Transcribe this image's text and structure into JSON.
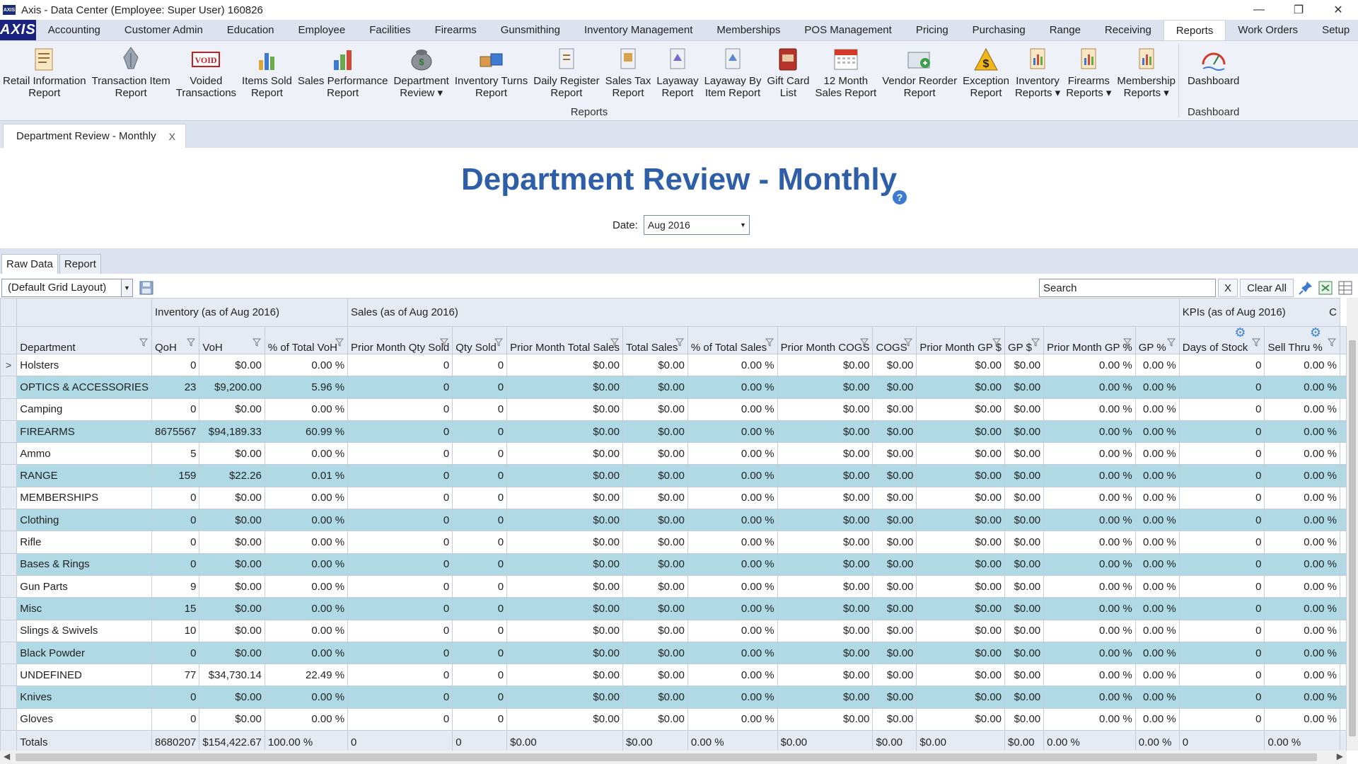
{
  "window": {
    "title": "Axis - Data Center  (Employee: Super User) 160826",
    "app_icon": "AXIS",
    "controls": [
      "—",
      "❐",
      "✕"
    ]
  },
  "menubar": {
    "logo": "AXIS",
    "items": [
      "Accounting",
      "Customer Admin",
      "Education",
      "Employee",
      "Facilities",
      "Firearms",
      "Gunsmithing",
      "Inventory Management",
      "Memberships",
      "POS Management",
      "Pricing",
      "Purchasing",
      "Range",
      "Receiving",
      "Reports",
      "Work Orders",
      "Setup"
    ],
    "active": "Reports"
  },
  "ribbon": {
    "reports_group_label": "Reports",
    "dashboard_group_label": "Dashboard",
    "buttons": [
      {
        "label": "Retail Information\nReport",
        "icon": "report-document-icon"
      },
      {
        "label": "Transaction Item\nReport",
        "icon": "pen-nib-icon"
      },
      {
        "label": "Voided\nTransactions",
        "icon": "void-stamp-icon",
        "stamp_text": "VOID"
      },
      {
        "label": "Items Sold\nReport",
        "icon": "bar-chart-icon"
      },
      {
        "label": "Sales Performance\nReport",
        "icon": "chart-bars-icon"
      },
      {
        "label": "Department\nReview ▾",
        "icon": "money-bag-icon"
      },
      {
        "label": "Inventory Turns\nReport",
        "icon": "boxes-icon"
      },
      {
        "label": "Daily Register\nReport",
        "icon": "register-report-icon"
      },
      {
        "label": "Sales Tax\nReport",
        "icon": "tax-report-icon"
      },
      {
        "label": "Layaway\nReport",
        "icon": "layaway-report-icon"
      },
      {
        "label": "Layaway By\nItem Report",
        "icon": "layaway-item-icon"
      },
      {
        "label": "Gift Card\nList",
        "icon": "gift-card-icon"
      },
      {
        "label": "12 Month\nSales Report",
        "icon": "calendar-icon"
      },
      {
        "label": "Vendor Reorder\nReport",
        "icon": "vendor-reorder-icon"
      },
      {
        "label": "Exception\nReport",
        "icon": "dollar-warning-icon"
      },
      {
        "label": "Inventory\nReports ▾",
        "icon": "inventory-reports-icon"
      },
      {
        "label": "Firearms\nReports ▾",
        "icon": "firearms-reports-icon"
      },
      {
        "label": "Membership\nReports ▾",
        "icon": "membership-reports-icon"
      }
    ],
    "dashboard_button": {
      "label": "Dashboard",
      "icon": "dashboard-gauge-icon"
    }
  },
  "doc_tab": {
    "label": "Department Review - Monthly",
    "close": "X"
  },
  "page": {
    "title": "Department Review - Monthly",
    "date_label": "Date:",
    "date_value": "Aug 2016"
  },
  "subtabs": [
    "Raw Data",
    "Report"
  ],
  "toolbar": {
    "layout_value": "(Default Grid Layout)",
    "search_placeholder": "Search",
    "clear_x": "X",
    "clear_all": "Clear All"
  },
  "grid": {
    "bands": [
      "Inventory (as of Aug 2016)",
      "Sales (as of Aug 2016)",
      "KPIs (as of Aug 2016)",
      "C"
    ],
    "columns": [
      "Department",
      "QoH",
      "VoH",
      "% of Total VoH",
      "Prior Month Qty Sold",
      "Qty Sold",
      "Prior Month Total Sales",
      "Total Sales",
      "% of Total Sales",
      "Prior Month COGS",
      "COGS",
      "Prior Month GP $",
      "GP $",
      "Prior Month GP %",
      "GP %",
      "Days of Stock",
      "Sell Thru %"
    ],
    "row_indicator": ">",
    "rows": [
      [
        "Holsters",
        "0",
        "$0.00",
        "0.00 %",
        "0",
        "0",
        "$0.00",
        "$0.00",
        "0.00 %",
        "$0.00",
        "$0.00",
        "$0.00",
        "$0.00",
        "0.00 %",
        "0.00 %",
        "0",
        "0.00 %"
      ],
      [
        "OPTICS & ACCESSORIES",
        "23",
        "$9,200.00",
        "5.96 %",
        "0",
        "0",
        "$0.00",
        "$0.00",
        "0.00 %",
        "$0.00",
        "$0.00",
        "$0.00",
        "$0.00",
        "0.00 %",
        "0.00 %",
        "0",
        "0.00 %"
      ],
      [
        "Camping",
        "0",
        "$0.00",
        "0.00 %",
        "0",
        "0",
        "$0.00",
        "$0.00",
        "0.00 %",
        "$0.00",
        "$0.00",
        "$0.00",
        "$0.00",
        "0.00 %",
        "0.00 %",
        "0",
        "0.00 %"
      ],
      [
        "FIREARMS",
        "8675567",
        "$94,189.33",
        "60.99 %",
        "0",
        "0",
        "$0.00",
        "$0.00",
        "0.00 %",
        "$0.00",
        "$0.00",
        "$0.00",
        "$0.00",
        "0.00 %",
        "0.00 %",
        "0",
        "0.00 %"
      ],
      [
        "Ammo",
        "5",
        "$0.00",
        "0.00 %",
        "0",
        "0",
        "$0.00",
        "$0.00",
        "0.00 %",
        "$0.00",
        "$0.00",
        "$0.00",
        "$0.00",
        "0.00 %",
        "0.00 %",
        "0",
        "0.00 %"
      ],
      [
        "RANGE",
        "159",
        "$22.26",
        "0.01 %",
        "0",
        "0",
        "$0.00",
        "$0.00",
        "0.00 %",
        "$0.00",
        "$0.00",
        "$0.00",
        "$0.00",
        "0.00 %",
        "0.00 %",
        "0",
        "0.00 %"
      ],
      [
        "MEMBERSHIPS",
        "0",
        "$0.00",
        "0.00 %",
        "0",
        "0",
        "$0.00",
        "$0.00",
        "0.00 %",
        "$0.00",
        "$0.00",
        "$0.00",
        "$0.00",
        "0.00 %",
        "0.00 %",
        "0",
        "0.00 %"
      ],
      [
        "Clothing",
        "0",
        "$0.00",
        "0.00 %",
        "0",
        "0",
        "$0.00",
        "$0.00",
        "0.00 %",
        "$0.00",
        "$0.00",
        "$0.00",
        "$0.00",
        "0.00 %",
        "0.00 %",
        "0",
        "0.00 %"
      ],
      [
        "Rifle",
        "0",
        "$0.00",
        "0.00 %",
        "0",
        "0",
        "$0.00",
        "$0.00",
        "0.00 %",
        "$0.00",
        "$0.00",
        "$0.00",
        "$0.00",
        "0.00 %",
        "0.00 %",
        "0",
        "0.00 %"
      ],
      [
        "Bases & Rings",
        "0",
        "$0.00",
        "0.00 %",
        "0",
        "0",
        "$0.00",
        "$0.00",
        "0.00 %",
        "$0.00",
        "$0.00",
        "$0.00",
        "$0.00",
        "0.00 %",
        "0.00 %",
        "0",
        "0.00 %"
      ],
      [
        "Gun Parts",
        "9",
        "$0.00",
        "0.00 %",
        "0",
        "0",
        "$0.00",
        "$0.00",
        "0.00 %",
        "$0.00",
        "$0.00",
        "$0.00",
        "$0.00",
        "0.00 %",
        "0.00 %",
        "0",
        "0.00 %"
      ],
      [
        "Misc",
        "15",
        "$0.00",
        "0.00 %",
        "0",
        "0",
        "$0.00",
        "$0.00",
        "0.00 %",
        "$0.00",
        "$0.00",
        "$0.00",
        "$0.00",
        "0.00 %",
        "0.00 %",
        "0",
        "0.00 %"
      ],
      [
        "Slings & Swivels",
        "10",
        "$0.00",
        "0.00 %",
        "0",
        "0",
        "$0.00",
        "$0.00",
        "0.00 %",
        "$0.00",
        "$0.00",
        "$0.00",
        "$0.00",
        "0.00 %",
        "0.00 %",
        "0",
        "0.00 %"
      ],
      [
        "Black Powder",
        "0",
        "$0.00",
        "0.00 %",
        "0",
        "0",
        "$0.00",
        "$0.00",
        "0.00 %",
        "$0.00",
        "$0.00",
        "$0.00",
        "$0.00",
        "0.00 %",
        "0.00 %",
        "0",
        "0.00 %"
      ],
      [
        "UNDEFINED",
        "77",
        "$34,730.14",
        "22.49 %",
        "0",
        "0",
        "$0.00",
        "$0.00",
        "0.00 %",
        "$0.00",
        "$0.00",
        "$0.00",
        "$0.00",
        "0.00 %",
        "0.00 %",
        "0",
        "0.00 %"
      ],
      [
        "Knives",
        "0",
        "$0.00",
        "0.00 %",
        "0",
        "0",
        "$0.00",
        "$0.00",
        "0.00 %",
        "$0.00",
        "$0.00",
        "$0.00",
        "$0.00",
        "0.00 %",
        "0.00 %",
        "0",
        "0.00 %"
      ],
      [
        "Gloves",
        "0",
        "$0.00",
        "0.00 %",
        "0",
        "0",
        "$0.00",
        "$0.00",
        "0.00 %",
        "$0.00",
        "$0.00",
        "$0.00",
        "$0.00",
        "0.00 %",
        "0.00 %",
        "0",
        "0.00 %"
      ]
    ],
    "totals": [
      "Totals",
      "8680207",
      "$154,422.67",
      "100.00 %",
      "0",
      "0",
      "$0.00",
      "$0.00",
      "0.00 %",
      "$0.00",
      "$0.00",
      "$0.00",
      "$0.00",
      "0.00 %",
      "0.00 %",
      "0",
      "0.00 %"
    ]
  },
  "colors": {
    "title_blue": "#2f5ea8",
    "alt_row": "#aed9e5",
    "header_bg": "#e6eaf2",
    "logo_bg": "#1a237e"
  }
}
